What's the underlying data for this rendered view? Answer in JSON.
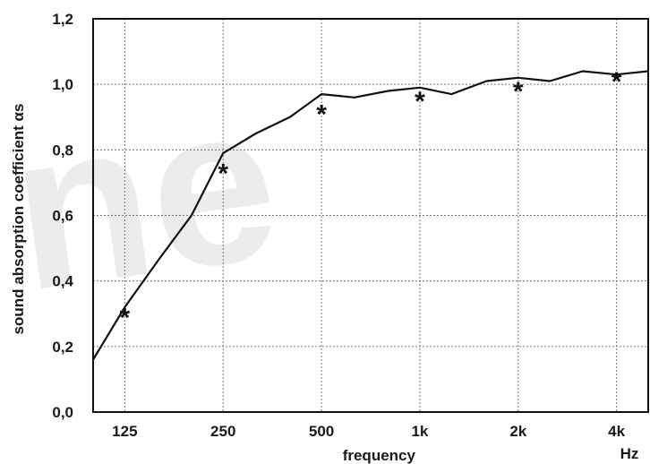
{
  "chart_data": {
    "type": "line",
    "title": "",
    "xlabel": "frequency",
    "ylabel": "sound absorption coefficient αs",
    "x_unit_label": "Hz",
    "x_scale": "log",
    "xlim": [
      100,
      5000
    ],
    "ylim": [
      0.0,
      1.2
    ],
    "x_ticks": [
      {
        "value": 125,
        "label": "125"
      },
      {
        "value": 250,
        "label": "250"
      },
      {
        "value": 500,
        "label": "500"
      },
      {
        "value": 1000,
        "label": "1k"
      },
      {
        "value": 2000,
        "label": "2k"
      },
      {
        "value": 4000,
        "label": "4k"
      }
    ],
    "y_ticks": [
      {
        "value": 0.0,
        "label": "0,0"
      },
      {
        "value": 0.2,
        "label": "0,2"
      },
      {
        "value": 0.4,
        "label": "0,4"
      },
      {
        "value": 0.6,
        "label": "0,6"
      },
      {
        "value": 0.8,
        "label": "0,8"
      },
      {
        "value": 1.0,
        "label": "1,0"
      },
      {
        "value": 1.2,
        "label": "1,2"
      }
    ],
    "grid": true,
    "series": [
      {
        "style": "line",
        "x": [
          100,
          125,
          160,
          200,
          250,
          315,
          400,
          500,
          630,
          800,
          1000,
          1250,
          1600,
          2000,
          2500,
          3150,
          4000,
          5000
        ],
        "y": [
          0.16,
          0.32,
          0.47,
          0.6,
          0.79,
          0.85,
          0.9,
          0.97,
          0.96,
          0.98,
          0.99,
          0.97,
          1.01,
          1.02,
          1.01,
          1.04,
          1.03,
          1.04
        ]
      },
      {
        "style": "marker",
        "marker": "*",
        "x": [
          125,
          250,
          500,
          1000,
          2000,
          4000
        ],
        "y": [
          0.3,
          0.74,
          0.92,
          0.96,
          0.99,
          1.02
        ]
      }
    ],
    "watermark": "ne"
  }
}
